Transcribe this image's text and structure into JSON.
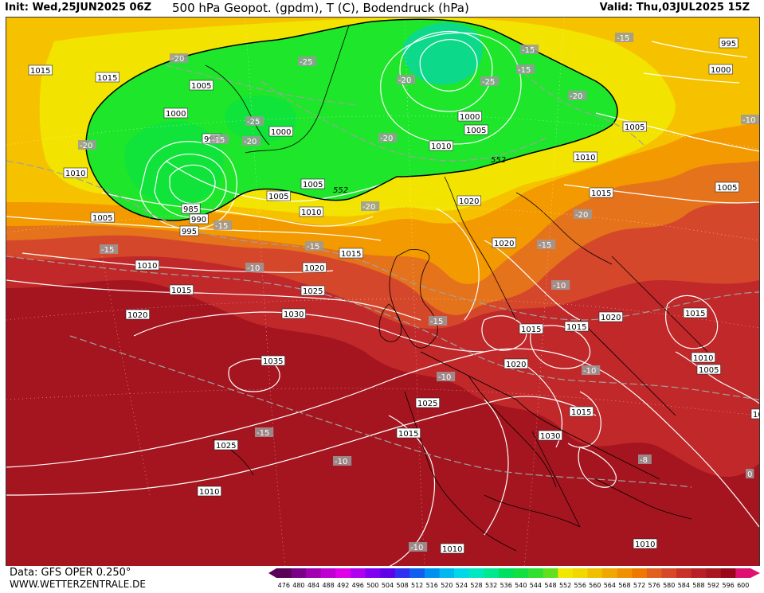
{
  "header": {
    "init": "Init: Wed,25JUN2025 06Z",
    "title": "500 hPa Geopot. (gpdm), T (C), Bodendruck (hPa)",
    "valid": "Valid: Thu,03JUL2025 15Z"
  },
  "footer": {
    "data": "Data: GFS OPER 0.250°",
    "site": "WWW.WETTERZENTRALE.DE"
  },
  "colors": {
    "very_low": "#0dd98a",
    "low": "#10e43a",
    "green": "#1ee62a",
    "yellow": "#f2e400",
    "gold": "#f6c200",
    "orange": "#f39a00",
    "dark_orange": "#e5731c",
    "red_orange": "#d5472b",
    "red": "#c0282a",
    "dark_red": "#a5151f"
  },
  "colorbar": {
    "labels": [
      "476",
      "480",
      "484",
      "488",
      "492",
      "496",
      "500",
      "504",
      "508",
      "512",
      "516",
      "520",
      "524",
      "528",
      "532",
      "536",
      "540",
      "544",
      "548",
      "552",
      "556",
      "560",
      "564",
      "568",
      "572",
      "576",
      "580",
      "584",
      "588",
      "592",
      "596",
      "600"
    ],
    "colors": [
      "#5a0058",
      "#7a0088",
      "#a000b0",
      "#c000d0",
      "#e000e8",
      "#b000f0",
      "#8000f0",
      "#6000e8",
      "#3030f0",
      "#1060f0",
      "#0090f0",
      "#00b8f0",
      "#00d8e8",
      "#00e8c0",
      "#00e890",
      "#00e060",
      "#10e040",
      "#30e030",
      "#60e020",
      "#f0e800",
      "#f0d800",
      "#f0c000",
      "#f0a800",
      "#f09000",
      "#f07800",
      "#e06020",
      "#d84828",
      "#c83028",
      "#b82028",
      "#a81820",
      "#980818",
      "#e01070"
    ]
  },
  "pressure_labels": [
    {
      "t": "1015"
    },
    {
      "t": "1015"
    },
    {
      "t": "1005"
    },
    {
      "t": "1000"
    },
    {
      "t": "995"
    },
    {
      "t": "1000"
    },
    {
      "t": "1010"
    },
    {
      "t": "985"
    },
    {
      "t": "990"
    },
    {
      "t": "995"
    },
    {
      "t": "1005"
    },
    {
      "t": "1010"
    },
    {
      "t": "1005"
    },
    {
      "t": "1005"
    },
    {
      "t": "1010"
    },
    {
      "t": "1000"
    },
    {
      "t": "1005"
    },
    {
      "t": "1010"
    },
    {
      "t": "1020"
    },
    {
      "t": "1015"
    },
    {
      "t": "1010"
    },
    {
      "t": "1015"
    },
    {
      "t": "1020"
    },
    {
      "t": "1025"
    },
    {
      "t": "1015"
    },
    {
      "t": "1020"
    },
    {
      "t": "1030"
    },
    {
      "t": "1035"
    },
    {
      "t": "1020"
    },
    {
      "t": "1015"
    },
    {
      "t": "1015"
    },
    {
      "t": "1020"
    },
    {
      "t": "1015"
    },
    {
      "t": "1020"
    },
    {
      "t": "1025"
    },
    {
      "t": "1015"
    },
    {
      "t": "1015"
    },
    {
      "t": "1030"
    },
    {
      "t": "1025"
    },
    {
      "t": "1010"
    },
    {
      "t": "1010"
    },
    {
      "t": "1010"
    },
    {
      "t": "1005"
    },
    {
      "t": "1005"
    },
    {
      "t": "995"
    },
    {
      "t": "1000"
    },
    {
      "t": "1005"
    },
    {
      "t": "1010"
    },
    {
      "t": "1015"
    }
  ],
  "temp_labels": [
    {
      "t": "-20"
    },
    {
      "t": "-25"
    },
    {
      "t": "-20"
    },
    {
      "t": "-15"
    },
    {
      "t": "-25"
    },
    {
      "t": "-20"
    },
    {
      "t": "-15"
    },
    {
      "t": "-20"
    },
    {
      "t": "-20"
    },
    {
      "t": "-25"
    },
    {
      "t": "-15"
    },
    {
      "t": "-20"
    },
    {
      "t": "-15"
    },
    {
      "t": "-20"
    },
    {
      "t": "-15"
    },
    {
      "t": "-20"
    },
    {
      "t": "-15"
    },
    {
      "t": "-15"
    },
    {
      "t": "-10"
    },
    {
      "t": "-15"
    },
    {
      "t": "-10"
    },
    {
      "t": "-15"
    },
    {
      "t": "-10"
    },
    {
      "t": "-10"
    },
    {
      "t": "-15"
    },
    {
      "t": "-10"
    },
    {
      "t": "-10"
    },
    {
      "t": "-8"
    },
    {
      "t": "-10"
    },
    {
      "t": "0"
    }
  ],
  "height_labels": [
    {
      "t": "552"
    },
    {
      "t": "552"
    }
  ]
}
